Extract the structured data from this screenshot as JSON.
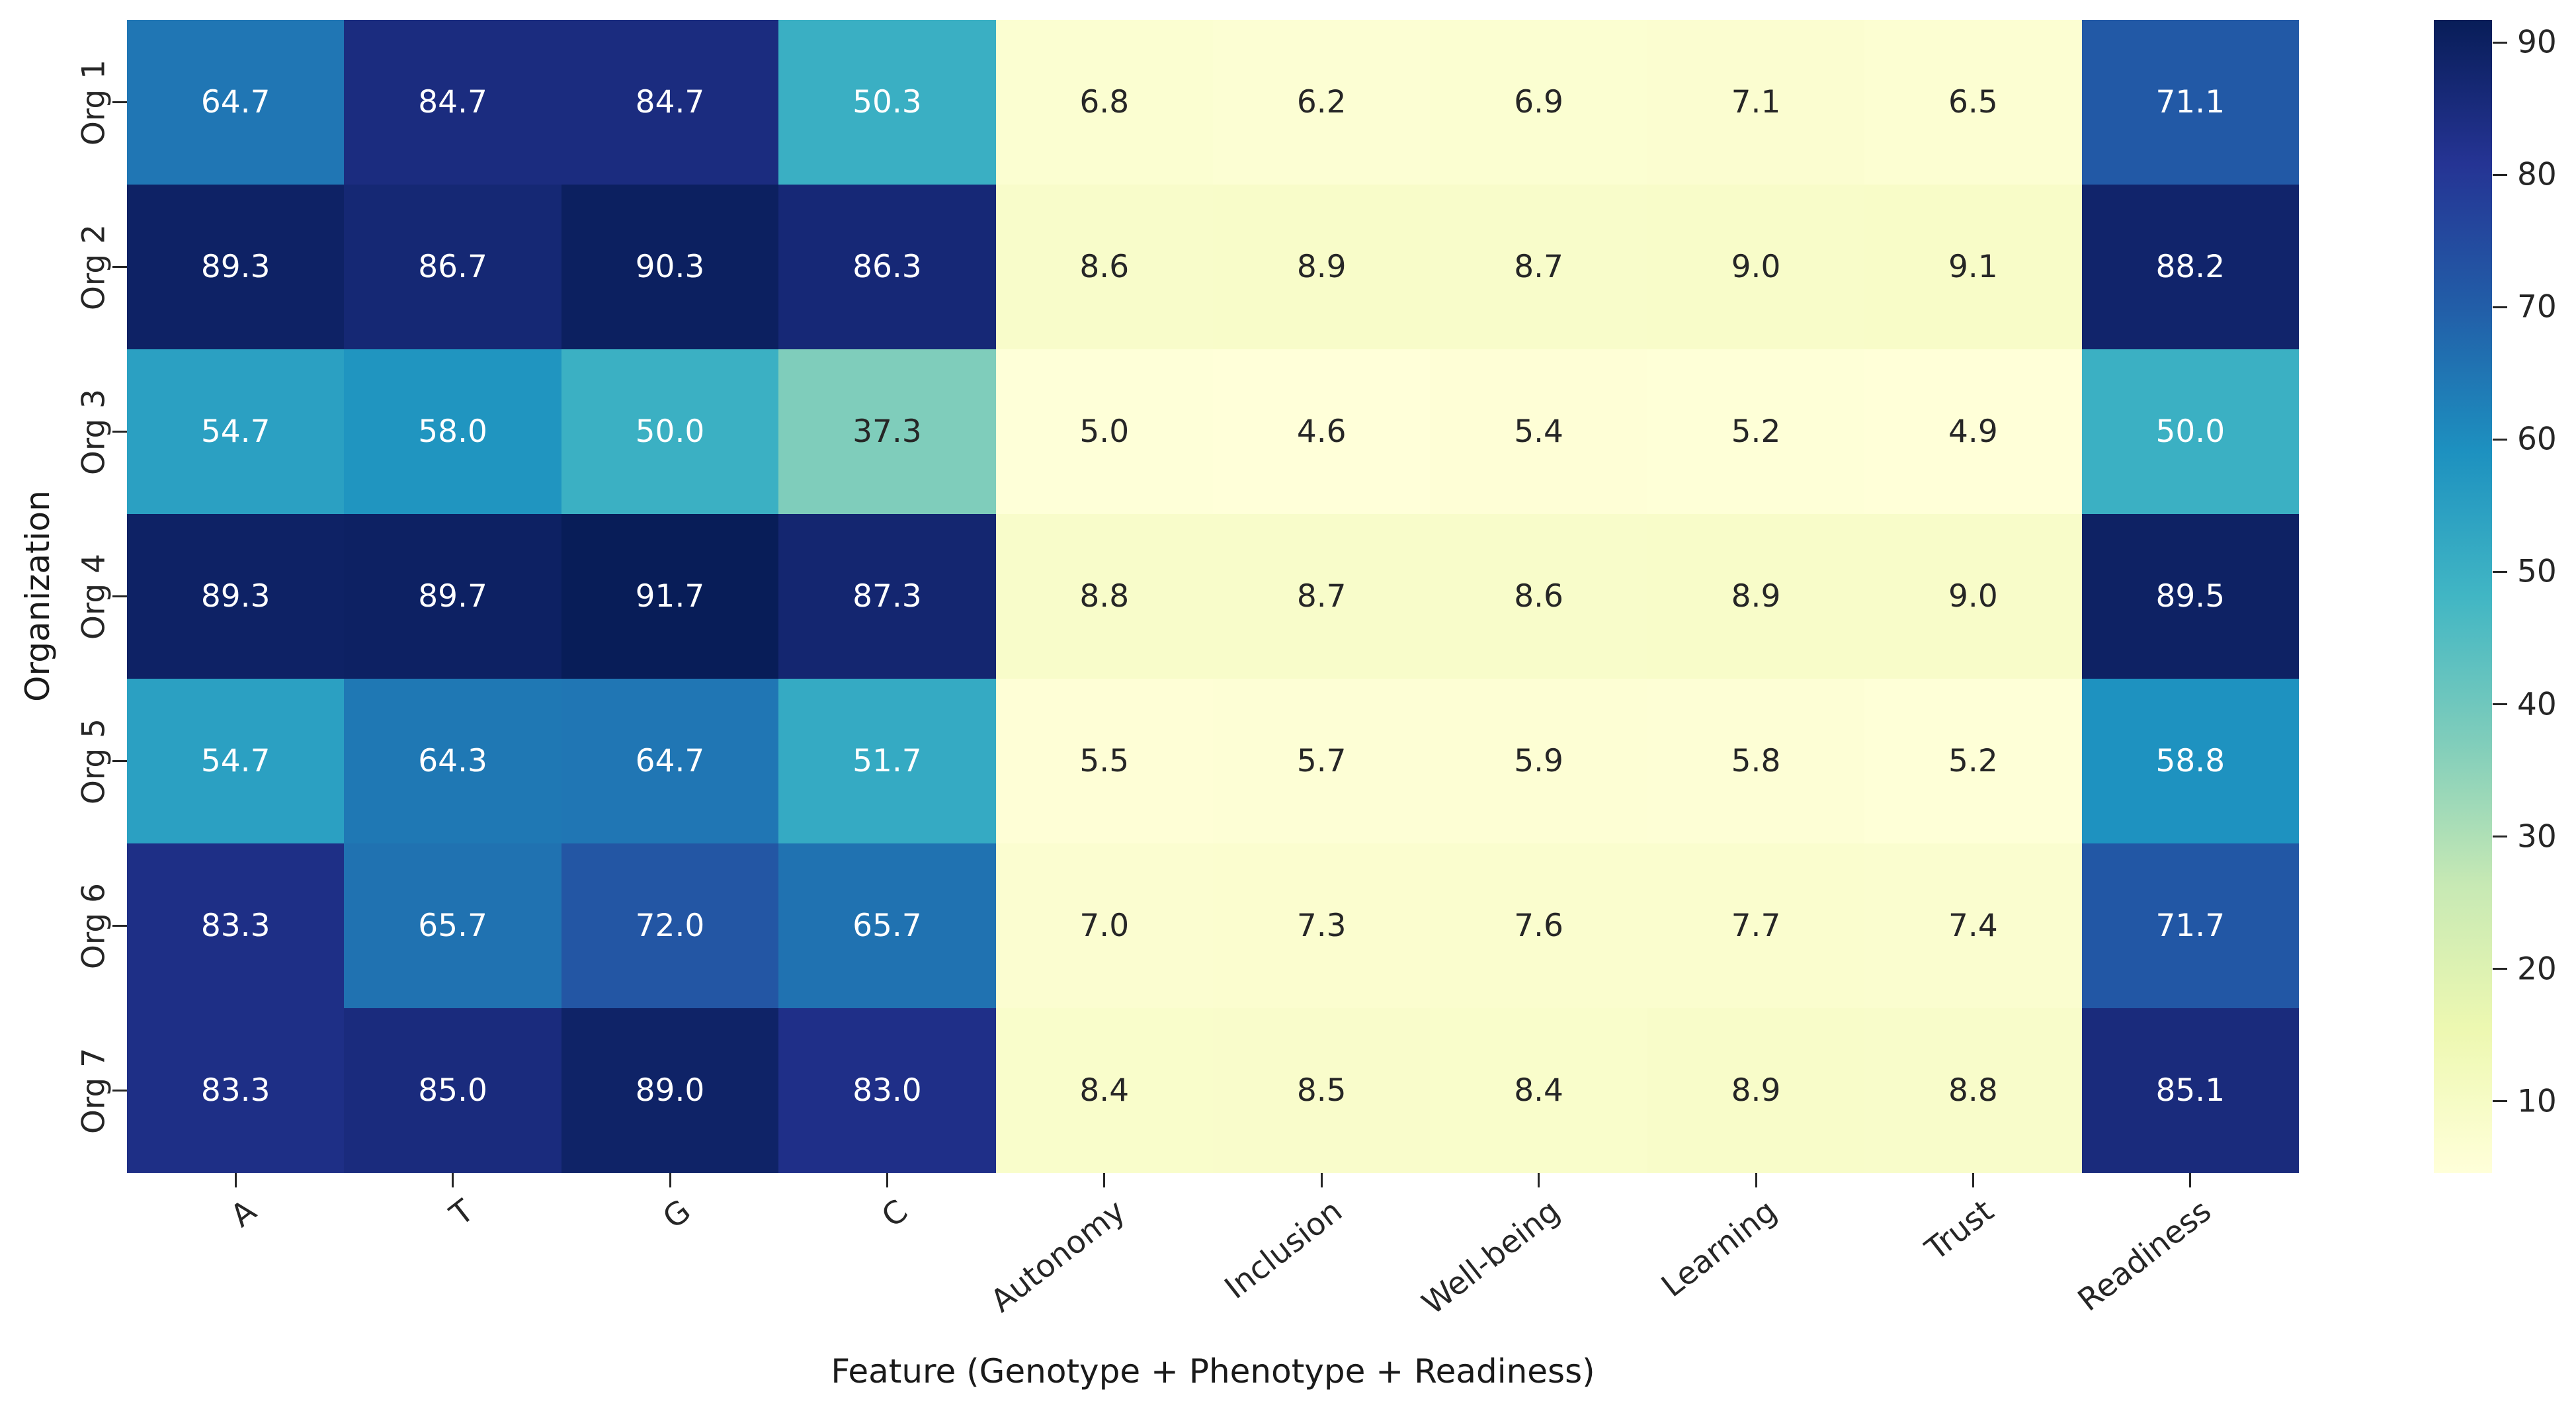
{
  "chart_data": {
    "type": "heatmap",
    "xlabel": "Feature (Genotype + Phenotype + Readiness)",
    "ylabel": "Organization",
    "columns": [
      "A",
      "T",
      "G",
      "C",
      "Autonomy",
      "Inclusion",
      "Well-being",
      "Learning",
      "Trust",
      "Readiness"
    ],
    "rows": [
      "Org 1",
      "Org 2",
      "Org 3",
      "Org 4",
      "Org 5",
      "Org 6",
      "Org 7"
    ],
    "values": [
      [
        64.7,
        84.7,
        84.7,
        50.3,
        6.8,
        6.2,
        6.9,
        7.1,
        6.5,
        71.1
      ],
      [
        89.3,
        86.7,
        90.3,
        86.3,
        8.6,
        8.9,
        8.7,
        9.0,
        9.1,
        88.2
      ],
      [
        54.7,
        58.0,
        50.0,
        37.3,
        5.0,
        4.6,
        5.4,
        5.2,
        4.9,
        50.0
      ],
      [
        89.3,
        89.7,
        91.7,
        87.3,
        8.8,
        8.7,
        8.6,
        8.9,
        9.0,
        89.5
      ],
      [
        54.7,
        64.3,
        64.7,
        51.7,
        5.5,
        5.7,
        5.9,
        5.8,
        5.2,
        58.8
      ],
      [
        83.3,
        65.7,
        72.0,
        65.7,
        7.0,
        7.3,
        7.6,
        7.7,
        7.4,
        71.7
      ],
      [
        83.3,
        85.0,
        89.0,
        83.0,
        8.4,
        8.5,
        8.4,
        8.9,
        8.8,
        85.1
      ]
    ],
    "value_decimals": 1,
    "vmin": 4.6,
    "vmax": 91.7,
    "colormap_name": "YlGnBu",
    "colormap_stops": [
      "#ffffd9",
      "#edf8b1",
      "#c7e9b4",
      "#7fcdbb",
      "#41b6c4",
      "#1d91c0",
      "#225ea8",
      "#253494",
      "#081d58"
    ],
    "annotation_light_color": "#ffffff",
    "annotation_dark_color": "#262626",
    "luminance_threshold": 0.408,
    "colorbar_ticks": [
      10,
      20,
      30,
      40,
      50,
      60,
      70,
      80,
      90
    ],
    "legend_position": "right",
    "grid": false,
    "x_tick_rotation_deg": 38,
    "y_tick_rotation_deg": 90
  }
}
